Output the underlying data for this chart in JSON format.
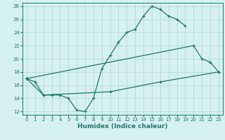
{
  "title": "",
  "xlabel": "Humidex (Indice chaleur)",
  "background_color": "#d6efef",
  "grid_color": "#b0d4d4",
  "line_color": "#1a7a6e",
  "xlim": [
    -0.5,
    23.5
  ],
  "ylim": [
    11.5,
    28.5
  ],
  "xticks": [
    0,
    1,
    2,
    3,
    4,
    5,
    6,
    7,
    8,
    9,
    10,
    11,
    12,
    13,
    14,
    15,
    16,
    17,
    18,
    19,
    20,
    21,
    22,
    23
  ],
  "yticks": [
    12,
    14,
    16,
    18,
    20,
    22,
    24,
    26,
    28
  ],
  "lines": [
    {
      "x": [
        0,
        1,
        2,
        3,
        4,
        5,
        6,
        7,
        8,
        9,
        10,
        11,
        12,
        13,
        14,
        15,
        16,
        17,
        18,
        19
      ],
      "y": [
        17,
        16.5,
        14.5,
        14.5,
        14.5,
        14,
        12.2,
        12,
        14,
        18.5,
        20.5,
        22.5,
        24,
        24.5,
        26.5,
        28,
        27.5,
        26.5,
        26,
        25
      ]
    },
    {
      "x": [
        0,
        20,
        21,
        22,
        23
      ],
      "y": [
        17,
        22,
        20,
        19.5,
        18
      ]
    },
    {
      "x": [
        0,
        2,
        10,
        16,
        23
      ],
      "y": [
        17,
        14.5,
        15,
        16.5,
        18
      ]
    }
  ]
}
